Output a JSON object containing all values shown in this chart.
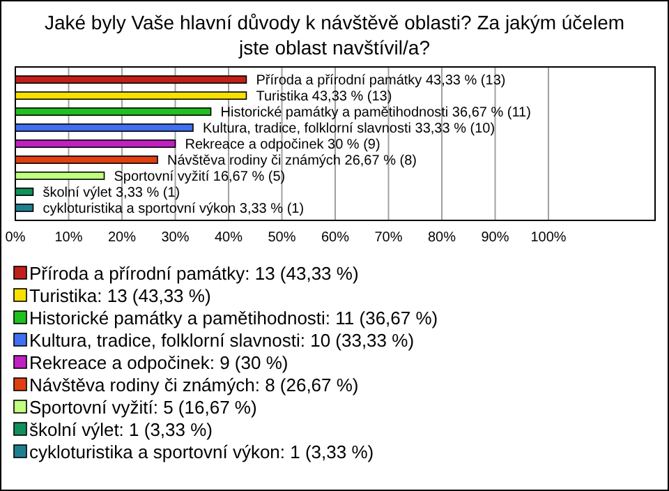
{
  "chart_data": {
    "type": "bar",
    "orientation": "horizontal",
    "stacked": true,
    "title": "Jaké byly Vaše hlavní důvody k návštěvě oblasti? Za jakým účelem jste oblast navštívil/a?",
    "categories": [
      null,
      null,
      null,
      null,
      null,
      null,
      null,
      null,
      null
    ],
    "series": [
      {
        "name": "Příroda a přírodní památky: 13 (43,33 %)",
        "color": "#c0201a",
        "values": [
          43.33,
          null,
          null,
          null,
          null,
          null,
          null,
          null,
          null
        ],
        "value_labels": [
          "Příroda a přírodní památky 43,33 % (13)",
          null,
          null,
          null,
          null,
          null,
          null,
          null,
          null
        ]
      },
      {
        "name": "Turistika: 13 (43,33 %)",
        "color": "#f8e000",
        "values": [
          null,
          43.33,
          null,
          null,
          null,
          null,
          null,
          null,
          null
        ],
        "value_labels": [
          null,
          "Turistika 43,33 % (13)",
          null,
          null,
          null,
          null,
          null,
          null,
          null
        ]
      },
      {
        "name": "Historické památky a pamětihodnosti: 11 (36,67 %)",
        "color": "#20c020",
        "values": [
          null,
          null,
          36.67,
          null,
          null,
          null,
          null,
          null,
          null
        ],
        "value_labels": [
          null,
          null,
          "Historické památky a pamětihodnosti 36,67 % (11)",
          null,
          null,
          null,
          null,
          null,
          null
        ]
      },
      {
        "name": "Kultura, tradice, folklorní slavnosti: 10 (33,33 %)",
        "color": "#4070f0",
        "values": [
          null,
          null,
          null,
          33.33,
          null,
          null,
          null,
          null,
          null
        ],
        "value_labels": [
          null,
          null,
          null,
          "Kultura, tradice, folklorní slavnosti 33,33 % (10)",
          null,
          null,
          null,
          null,
          null
        ]
      },
      {
        "name": "Rekreace a odpočinek: 9 (30 %)",
        "color": "#c020c0",
        "values": [
          null,
          null,
          null,
          null,
          30,
          null,
          null,
          null,
          null
        ],
        "value_labels": [
          null,
          null,
          null,
          null,
          "Rekreace a odpočinek 30 % (9)",
          null,
          null,
          null,
          null
        ]
      },
      {
        "name": "Návštěva rodiny či známých: 8 (26,67 %)",
        "color": "#e04010",
        "values": [
          null,
          null,
          null,
          null,
          null,
          26.67,
          null,
          null,
          null
        ],
        "value_labels": [
          null,
          null,
          null,
          null,
          null,
          "Návštěva rodiny či známých 26,67 % (8)",
          null,
          null,
          null
        ]
      },
      {
        "name": "Sportovní vyžití: 5 (16,67 %)",
        "color": "#c0ff80",
        "values": [
          null,
          null,
          null,
          null,
          null,
          null,
          16.67,
          null,
          null
        ],
        "value_labels": [
          null,
          null,
          null,
          null,
          null,
          null,
          "Sportovní vyžití 16,67 % (5)",
          null,
          null
        ]
      },
      {
        "name": "školní výlet: 1 (3,33 %)",
        "color": "#10905a",
        "values": [
          null,
          null,
          null,
          null,
          null,
          null,
          null,
          3.33,
          null
        ],
        "value_labels": [
          null,
          null,
          null,
          null,
          null,
          null,
          null,
          "školní výlet 3,33 % (1)",
          null
        ]
      },
      {
        "name": "cykloturistika a sportovní výkon: 1 (3,33 %)",
        "color": "#207f8f",
        "values": [
          null,
          null,
          null,
          null,
          null,
          null,
          null,
          null,
          3.33
        ],
        "value_labels": [
          null,
          null,
          null,
          null,
          null,
          null,
          null,
          null,
          "cykloturistika a sportovní výkon 3,33 % (1)"
        ]
      }
    ],
    "xlim": [
      0,
      120
    ],
    "xticks": [
      {
        "value": 0,
        "label": "0%"
      },
      {
        "value": 10,
        "label": "10%"
      },
      {
        "value": 20,
        "label": "20%"
      },
      {
        "value": 30,
        "label": "30%"
      },
      {
        "value": 40,
        "label": "40%"
      },
      {
        "value": 50,
        "label": "50%"
      },
      {
        "value": 60,
        "label": "60%"
      },
      {
        "value": 70,
        "label": "70%"
      },
      {
        "value": 80,
        "label": "80%"
      },
      {
        "value": 90,
        "label": "90%"
      },
      {
        "value": 100,
        "label": "100%"
      }
    ],
    "grid": "x",
    "legend": "bottom"
  }
}
